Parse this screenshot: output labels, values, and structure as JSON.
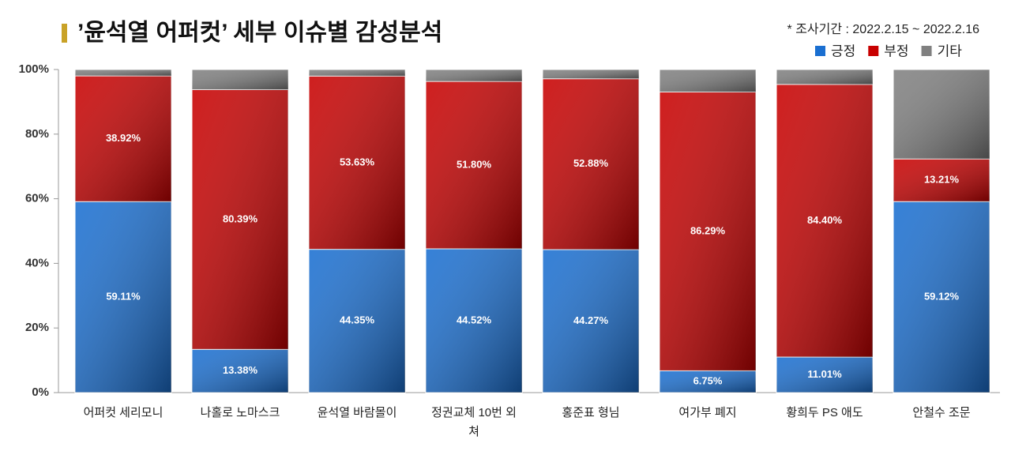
{
  "chart_data": {
    "type": "stacked_bar",
    "title": "’윤석열 어퍼컷’ 세부 이슈별 감성분석",
    "subtitle": "* 조사기간 : 2022.2.15 ~ 2022.2.16",
    "categories": [
      "어퍼컷 세리모니",
      "나홀로 노마스크",
      "윤석열 바람몰이",
      "정권교체 10번 외쳐",
      "홍준표 형님",
      "여가부 폐지",
      "황희두 PS 애도",
      "안철수 조문"
    ],
    "series": [
      {
        "name": "긍정",
        "color": "#1a6fd1",
        "values": [
          59.11,
          13.38,
          44.35,
          44.52,
          44.27,
          6.75,
          11.01,
          59.12
        ],
        "value_labels": [
          "59.11%",
          "13.38%",
          "44.35%",
          "44.52%",
          "44.27%",
          "6.75%",
          "11.01%",
          "59.12%"
        ]
      },
      {
        "name": "부정",
        "color": "#c80000",
        "values": [
          38.92,
          80.39,
          53.63,
          51.8,
          52.88,
          86.29,
          84.4,
          13.21
        ],
        "value_labels": [
          "38.92%",
          "80.39%",
          "53.63%",
          "51.80%",
          "52.88%",
          "86.29%",
          "84.40%",
          "13.21%"
        ]
      },
      {
        "name": "기타",
        "color": "#808080",
        "values": [
          1.97,
          6.23,
          2.02,
          3.68,
          2.85,
          6.96,
          4.59,
          27.67
        ]
      }
    ],
    "ylim": [
      0,
      100
    ],
    "yticks": [
      {
        "value": 0,
        "label": "0%"
      },
      {
        "value": 20,
        "label": "20%"
      },
      {
        "value": 40,
        "label": "40%"
      },
      {
        "value": 60,
        "label": "60%"
      },
      {
        "value": 80,
        "label": "80%"
      },
      {
        "value": 100,
        "label": "100%"
      }
    ],
    "grid": false,
    "legend": "top-right"
  }
}
